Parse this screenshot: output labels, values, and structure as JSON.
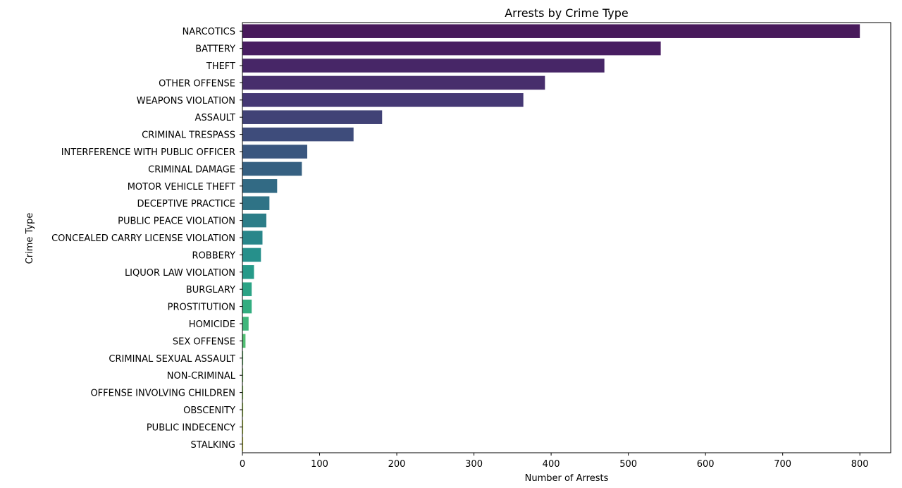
{
  "chart_data": {
    "type": "bar",
    "orientation": "horizontal",
    "title": "Arrests by Crime Type",
    "xlabel": "Number of Arrests",
    "ylabel": "Crime Type",
    "xlim": [
      0,
      840
    ],
    "xticks": [
      0,
      100,
      200,
      300,
      400,
      500,
      600,
      700,
      800
    ],
    "grid": false,
    "palette": "viridis",
    "categories": [
      "NARCOTICS",
      "BATTERY",
      "THEFT",
      "OTHER OFFENSE",
      "WEAPONS VIOLATION",
      "ASSAULT",
      "CRIMINAL TRESPASS",
      "INTERFERENCE WITH PUBLIC OFFICER",
      "CRIMINAL DAMAGE",
      "MOTOR VEHICLE THEFT",
      "DECEPTIVE PRACTICE",
      "PUBLIC PEACE VIOLATION",
      "CONCEALED CARRY LICENSE VIOLATION",
      "ROBBERY",
      "LIQUOR LAW VIOLATION",
      "BURGLARY",
      "PROSTITUTION",
      "HOMICIDE",
      "SEX OFFENSE",
      "CRIMINAL SEXUAL ASSAULT",
      "NON-CRIMINAL",
      "OFFENSE INVOLVING CHILDREN",
      "OBSCENITY",
      "PUBLIC INDECENCY",
      "STALKING"
    ],
    "values": [
      800,
      542,
      469,
      392,
      364,
      181,
      144,
      84,
      77,
      45,
      35,
      31,
      26,
      24,
      15,
      12,
      12,
      8,
      4,
      1,
      1,
      1,
      1,
      1,
      1
    ],
    "colors": [
      "#481a5b",
      "#481d61",
      "#472667",
      "#472e6c",
      "#453874",
      "#414276",
      "#3e4c7b",
      "#3a567f",
      "#366081",
      "#326a84",
      "#2f7386",
      "#2c7d88",
      "#29868a",
      "#26908b",
      "#269a89",
      "#2ba385",
      "#33ad80",
      "#3fb67b",
      "#52bf73",
      "#62c86a",
      "#78d05d",
      "#8ed84d",
      "#a8de3b",
      "#c3e32c",
      "#dde52a"
    ]
  }
}
